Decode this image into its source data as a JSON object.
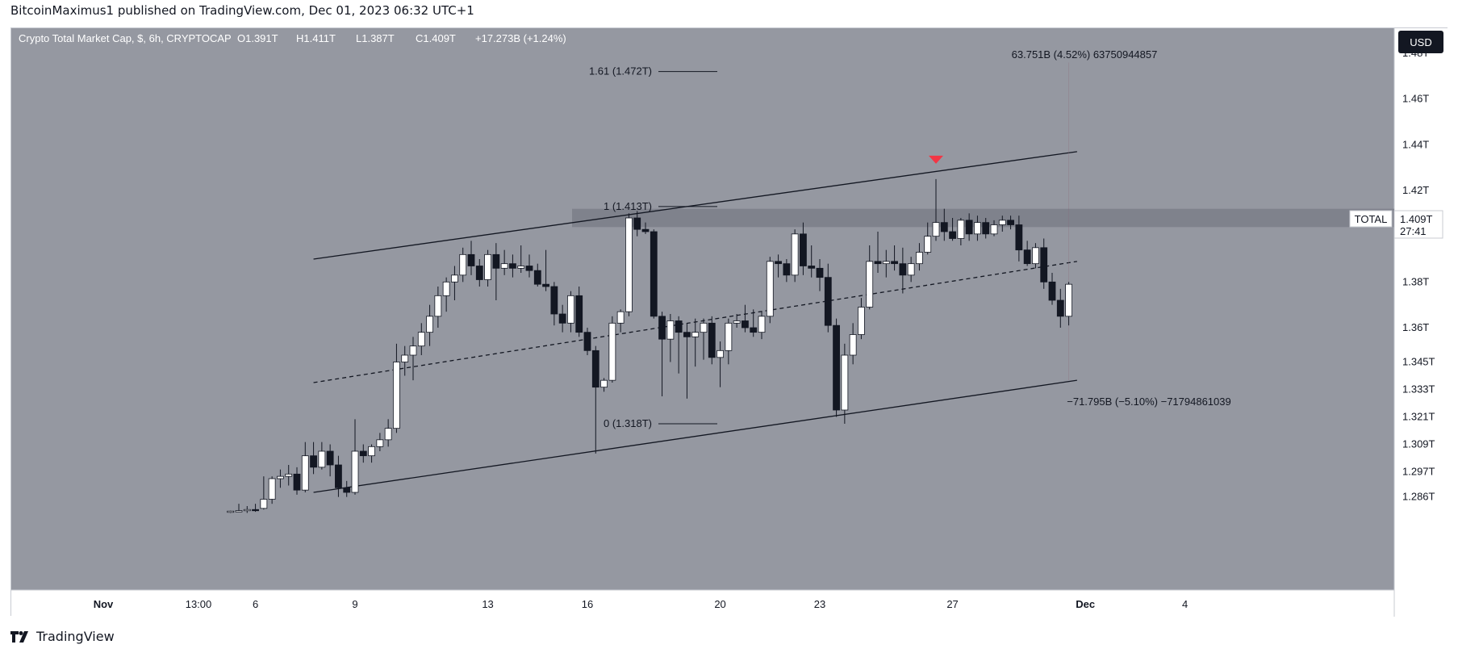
{
  "header": {
    "published_by": "BitcoinMaximus1 published on TradingView.com, Dec 01, 2023 06:32 UTC+1"
  },
  "footer": {
    "brand": "TradingView"
  },
  "currency_button": "USD",
  "chart_data": {
    "type": "candlestick",
    "title": "Crypto Total Market Cap, $, 6h, CRYPTOCAP",
    "ohlc": {
      "o": "O1.391T",
      "h": "H1.411T",
      "l": "L1.387T",
      "c": "C1.409T",
      "change": "+17.273B (+1.24%)"
    },
    "colors": {
      "background": "#9598a1",
      "up": "#ffffff",
      "down": "#131722",
      "wick": "#131722",
      "annotation_marker": "#f23645"
    },
    "y_axis": {
      "ticks": [
        "1.48T",
        "1.46T",
        "1.44T",
        "1.42T",
        "1.38T",
        "1.36T",
        "1.345T",
        "1.333T",
        "1.321T",
        "1.309T",
        "1.297T",
        "1.286T"
      ],
      "unit": "T",
      "ylim": [
        1.286,
        1.485
      ]
    },
    "x_axis": {
      "ticks": [
        "Nov",
        "13:00",
        "6",
        "9",
        "13",
        "16",
        "20",
        "23",
        "27",
        "Dec",
        "4"
      ],
      "range": [
        "2023-11-05",
        "2023-12-04"
      ]
    },
    "last_price": {
      "series": "TOTAL",
      "value": "1.409T",
      "countdown": "27:41"
    },
    "fib_levels": [
      {
        "label": "1.61 (1.472T)",
        "ratio": 1.61,
        "value": 1.472
      },
      {
        "label": "1 (1.413T)",
        "ratio": 1,
        "value": 1.413
      },
      {
        "label": "0 (1.318T)",
        "ratio": 0,
        "value": 1.318
      }
    ],
    "measurements": [
      {
        "label": "63.751B (4.52%) 63750944857",
        "value_b": 63.751,
        "percent": 4.52
      },
      {
        "label": "−71.795B (−5.10%) −71794861039",
        "value_b": -71.795,
        "percent": -5.1
      }
    ],
    "channel": {
      "upper": {
        "from": [
          "2023-11-07T18:00",
          1.39
        ],
        "to": [
          "2023-11-30T18:00",
          1.437
        ]
      },
      "middle": {
        "from": [
          "2023-11-07T18:00",
          1.336
        ],
        "to": [
          "2023-11-30T18:00",
          1.389
        ]
      },
      "lower": {
        "from": [
          "2023-11-07T18:00",
          1.288
        ],
        "to": [
          "2023-11-30T18:00",
          1.337
        ]
      }
    },
    "resistance_zone": [
      1.404,
      1.412
    ],
    "candles": [
      [
        "2023-11-05T06:00",
        1.2795,
        1.28,
        1.279,
        1.2798
      ],
      [
        "2023-11-05T12:00",
        1.2798,
        1.283,
        1.2795,
        1.28
      ],
      [
        "2023-11-05T18:00",
        1.28,
        1.282,
        1.279,
        1.2805
      ],
      [
        "2023-11-06T00:00",
        1.2805,
        1.283,
        1.2795,
        1.28
      ],
      [
        "2023-11-06T06:00",
        1.281,
        1.295,
        1.2805,
        1.285
      ],
      [
        "2023-11-06T12:00",
        1.285,
        1.295,
        1.283,
        1.294
      ],
      [
        "2023-11-06T18:00",
        1.294,
        1.298,
        1.29,
        1.295
      ],
      [
        "2023-11-07T00:00",
        1.295,
        1.3,
        1.291,
        1.296
      ],
      [
        "2023-11-07T06:00",
        1.296,
        1.299,
        1.287,
        1.289
      ],
      [
        "2023-11-07T12:00",
        1.289,
        1.31,
        1.288,
        1.304
      ],
      [
        "2023-11-07T18:00",
        1.304,
        1.31,
        1.296,
        1.299
      ],
      [
        "2023-11-08T00:00",
        1.299,
        1.31,
        1.298,
        1.306
      ],
      [
        "2023-11-08T06:00",
        1.306,
        1.309,
        1.295,
        1.3
      ],
      [
        "2023-11-08T12:00",
        1.3,
        1.304,
        1.286,
        1.29
      ],
      [
        "2023-11-08T18:00",
        1.29,
        1.293,
        1.286,
        1.288
      ],
      [
        "2023-11-09T00:00",
        1.288,
        1.32,
        1.287,
        1.306
      ],
      [
        "2023-11-09T06:00",
        1.306,
        1.309,
        1.301,
        1.304
      ],
      [
        "2023-11-09T12:00",
        1.304,
        1.309,
        1.301,
        1.308
      ],
      [
        "2023-11-09T18:00",
        1.308,
        1.314,
        1.306,
        1.311
      ],
      [
        "2023-11-10T00:00",
        1.311,
        1.32,
        1.308,
        1.316
      ],
      [
        "2023-11-10T06:00",
        1.316,
        1.353,
        1.314,
        1.345
      ],
      [
        "2023-11-10T12:00",
        1.345,
        1.352,
        1.339,
        1.348
      ],
      [
        "2023-11-10T18:00",
        1.348,
        1.356,
        1.337,
        1.352
      ],
      [
        "2023-11-11T00:00",
        1.352,
        1.362,
        1.348,
        1.358
      ],
      [
        "2023-11-11T06:00",
        1.358,
        1.37,
        1.352,
        1.365
      ],
      [
        "2023-11-11T12:00",
        1.365,
        1.378,
        1.36,
        1.374
      ],
      [
        "2023-11-11T18:00",
        1.374,
        1.382,
        1.367,
        1.38
      ],
      [
        "2023-11-12T00:00",
        1.38,
        1.387,
        1.372,
        1.383
      ],
      [
        "2023-11-12T06:00",
        1.383,
        1.395,
        1.38,
        1.392
      ],
      [
        "2023-11-12T12:00",
        1.392,
        1.398,
        1.383,
        1.387
      ],
      [
        "2023-11-12T18:00",
        1.387,
        1.39,
        1.378,
        1.381
      ],
      [
        "2023-11-13T00:00",
        1.381,
        1.394,
        1.378,
        1.392
      ],
      [
        "2023-11-13T06:00",
        1.392,
        1.397,
        1.372,
        1.386
      ],
      [
        "2023-11-13T12:00",
        1.386,
        1.394,
        1.383,
        1.388
      ],
      [
        "2023-11-13T18:00",
        1.388,
        1.392,
        1.382,
        1.386
      ],
      [
        "2023-11-14T00:00",
        1.386,
        1.396,
        1.384,
        1.387
      ],
      [
        "2023-11-14T06:00",
        1.387,
        1.392,
        1.382,
        1.385
      ],
      [
        "2023-11-14T12:00",
        1.385,
        1.388,
        1.378,
        1.379
      ],
      [
        "2023-11-14T18:00",
        1.379,
        1.394,
        1.376,
        1.378
      ],
      [
        "2023-11-15T00:00",
        1.378,
        1.38,
        1.361,
        1.366
      ],
      [
        "2023-11-15T06:00",
        1.366,
        1.37,
        1.358,
        1.362
      ],
      [
        "2023-11-15T12:00",
        1.362,
        1.376,
        1.358,
        1.374
      ],
      [
        "2023-11-15T18:00",
        1.374,
        1.378,
        1.356,
        1.358
      ],
      [
        "2023-11-16T00:00",
        1.358,
        1.36,
        1.348,
        1.35
      ],
      [
        "2023-11-16T06:00",
        1.35,
        1.352,
        1.305,
        1.334
      ],
      [
        "2023-11-16T12:00",
        1.334,
        1.338,
        1.332,
        1.337
      ],
      [
        "2023-11-16T18:00",
        1.337,
        1.365,
        1.336,
        1.362
      ],
      [
        "2023-11-17T00:00",
        1.362,
        1.368,
        1.358,
        1.367
      ],
      [
        "2023-11-17T06:00",
        1.367,
        1.41,
        1.365,
        1.408
      ],
      [
        "2023-11-17T12:00",
        1.408,
        1.411,
        1.4,
        1.403
      ],
      [
        "2023-11-17T18:00",
        1.403,
        1.406,
        1.401,
        1.402
      ],
      [
        "2023-11-18T00:00",
        1.402,
        1.403,
        1.364,
        1.365
      ],
      [
        "2023-11-18T06:00",
        1.365,
        1.367,
        1.33,
        1.355
      ],
      [
        "2023-11-18T12:00",
        1.355,
        1.366,
        1.345,
        1.363
      ],
      [
        "2023-11-18T18:00",
        1.363,
        1.365,
        1.34,
        1.358
      ],
      [
        "2023-11-19T00:00",
        1.358,
        1.362,
        1.329,
        1.356
      ],
      [
        "2023-11-19T06:00",
        1.356,
        1.364,
        1.343,
        1.358
      ],
      [
        "2023-11-19T12:00",
        1.358,
        1.364,
        1.346,
        1.362
      ],
      [
        "2023-11-19T18:00",
        1.362,
        1.365,
        1.344,
        1.347
      ],
      [
        "2023-11-20T00:00",
        1.347,
        1.354,
        1.334,
        1.35
      ],
      [
        "2023-11-20T06:00",
        1.35,
        1.364,
        1.344,
        1.362
      ],
      [
        "2023-11-20T12:00",
        1.362,
        1.366,
        1.36,
        1.363
      ],
      [
        "2023-11-20T18:00",
        1.363,
        1.37,
        1.358,
        1.36
      ],
      [
        "2023-11-21T00:00",
        1.36,
        1.368,
        1.356,
        1.358
      ],
      [
        "2023-11-21T06:00",
        1.358,
        1.367,
        1.355,
        1.365
      ],
      [
        "2023-11-21T12:00",
        1.365,
        1.391,
        1.362,
        1.389
      ],
      [
        "2023-11-21T18:00",
        1.389,
        1.392,
        1.382,
        1.388
      ],
      [
        "2023-11-22T00:00",
        1.388,
        1.39,
        1.38,
        1.383
      ],
      [
        "2023-11-22T06:00",
        1.383,
        1.403,
        1.38,
        1.401
      ],
      [
        "2023-11-22T12:00",
        1.401,
        1.406,
        1.383,
        1.387
      ],
      [
        "2023-11-22T18:00",
        1.387,
        1.396,
        1.382,
        1.386
      ],
      [
        "2023-11-23T00:00",
        1.386,
        1.39,
        1.376,
        1.382
      ],
      [
        "2023-11-23T06:00",
        1.382,
        1.388,
        1.358,
        1.361
      ],
      [
        "2023-11-23T12:00",
        1.361,
        1.364,
        1.321,
        1.324
      ],
      [
        "2023-11-23T18:00",
        1.324,
        1.353,
        1.318,
        1.348
      ],
      [
        "2023-11-24T00:00",
        1.348,
        1.362,
        1.344,
        1.357
      ],
      [
        "2023-11-24T06:00",
        1.357,
        1.373,
        1.355,
        1.369
      ],
      [
        "2023-11-24T12:00",
        1.369,
        1.396,
        1.368,
        1.389
      ],
      [
        "2023-11-24T18:00",
        1.389,
        1.402,
        1.384,
        1.388
      ],
      [
        "2023-11-25T00:00",
        1.388,
        1.394,
        1.382,
        1.389
      ],
      [
        "2023-11-25T06:00",
        1.389,
        1.396,
        1.385,
        1.388
      ],
      [
        "2023-11-25T12:00",
        1.388,
        1.395,
        1.375,
        1.383
      ],
      [
        "2023-11-25T18:00",
        1.383,
        1.391,
        1.38,
        1.388
      ],
      [
        "2023-11-26T00:00",
        1.388,
        1.397,
        1.385,
        1.393
      ],
      [
        "2023-11-26T06:00",
        1.393,
        1.406,
        1.392,
        1.4
      ],
      [
        "2023-11-26T12:00",
        1.4,
        1.425,
        1.398,
        1.406
      ],
      [
        "2023-11-26T18:00",
        1.406,
        1.412,
        1.398,
        1.402
      ],
      [
        "2023-11-27T00:00",
        1.402,
        1.408,
        1.398,
        1.399
      ],
      [
        "2023-11-27T06:00",
        1.399,
        1.408,
        1.396,
        1.407
      ],
      [
        "2023-11-27T12:00",
        1.407,
        1.41,
        1.398,
        1.401
      ],
      [
        "2023-11-27T18:00",
        1.401,
        1.409,
        1.398,
        1.406
      ],
      [
        "2023-11-28T00:00",
        1.406,
        1.408,
        1.399,
        1.401
      ],
      [
        "2023-11-28T06:00",
        1.401,
        1.407,
        1.4,
        1.405
      ],
      [
        "2023-11-28T12:00",
        1.405,
        1.409,
        1.402,
        1.407
      ],
      [
        "2023-11-28T18:00",
        1.407,
        1.409,
        1.403,
        1.405
      ],
      [
        "2023-11-29T00:00",
        1.405,
        1.409,
        1.389,
        1.394
      ],
      [
        "2023-11-29T06:00",
        1.394,
        1.398,
        1.387,
        1.388
      ],
      [
        "2023-11-29T12:00",
        1.388,
        1.397,
        1.386,
        1.395
      ],
      [
        "2023-11-29T18:00",
        1.395,
        1.399,
        1.377,
        1.38
      ],
      [
        "2023-11-30T00:00",
        1.38,
        1.384,
        1.37,
        1.372
      ],
      [
        "2023-11-30T06:00",
        1.372,
        1.377,
        1.36,
        1.365
      ],
      [
        "2023-11-30T12:00",
        1.365,
        1.38,
        1.361,
        1.379
      ]
    ]
  }
}
